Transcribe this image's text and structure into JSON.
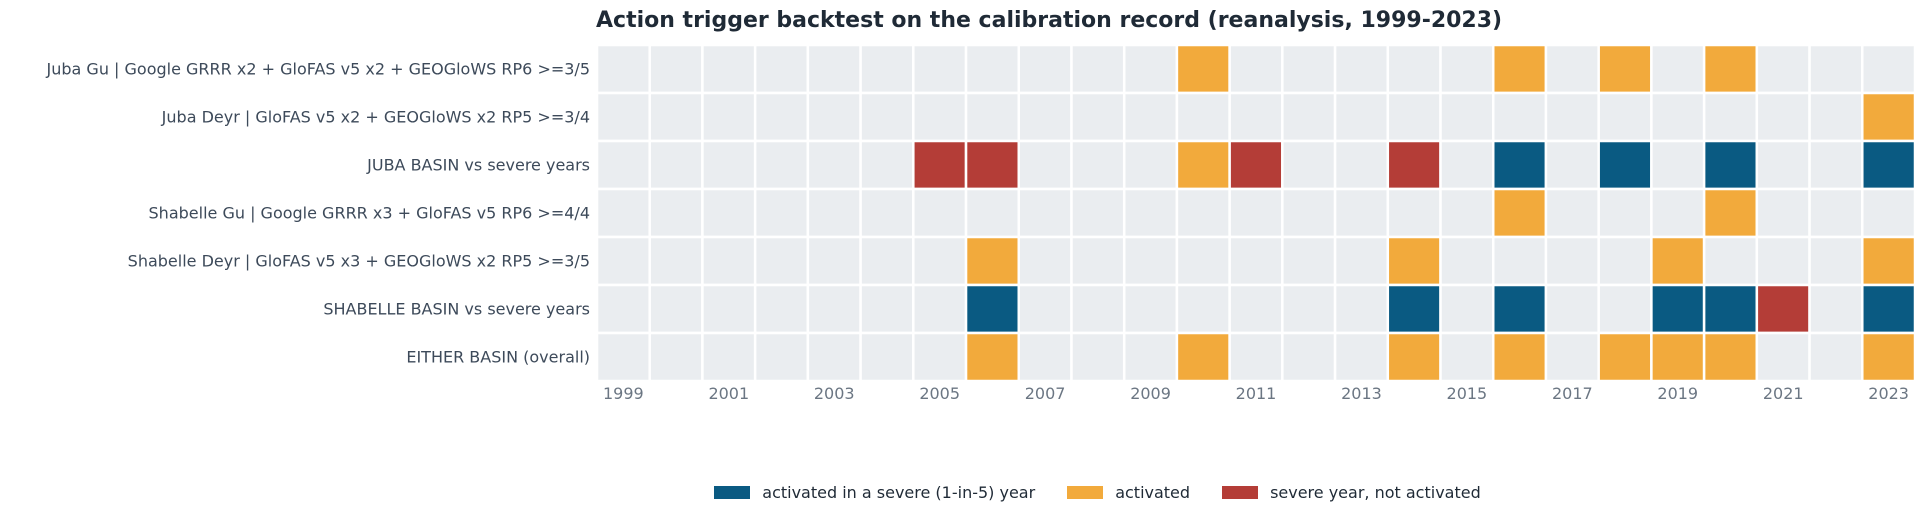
{
  "chart_data": {
    "type": "heatmap",
    "title": "Action trigger backtest on the calibration record (reanalysis, 1999-2023)",
    "years": [
      1999,
      2000,
      2001,
      2002,
      2003,
      2004,
      2005,
      2006,
      2007,
      2008,
      2009,
      2010,
      2011,
      2012,
      2013,
      2014,
      2015,
      2016,
      2017,
      2018,
      2019,
      2020,
      2021,
      2022,
      2023
    ],
    "x_tick_labels": [
      "1999",
      "2001",
      "2003",
      "2005",
      "2007",
      "2009",
      "2011",
      "2013",
      "2015",
      "2017",
      "2019",
      "2021",
      "2023"
    ],
    "rows": [
      {
        "label": "Juba Gu | Google GRRR x2 + GloFAS v5 x2 + GEOGloWS RP6 >=3/5",
        "cells": {
          "2010": "activated",
          "2016": "activated",
          "2018": "activated",
          "2020": "activated"
        }
      },
      {
        "label": "Juba Deyr | GloFAS v5 x2 + GEOGloWS x2 RP5 >=3/4",
        "cells": {
          "2023": "activated"
        }
      },
      {
        "label": "JUBA BASIN vs severe years",
        "cells": {
          "2005": "missed",
          "2006": "missed",
          "2010": "activated",
          "2011": "missed",
          "2014": "missed",
          "2016": "hit",
          "2018": "hit",
          "2020": "hit",
          "2023": "hit"
        }
      },
      {
        "label": "Shabelle Gu | Google GRRR x3 + GloFAS v5 RP6 >=4/4",
        "cells": {
          "2016": "activated",
          "2020": "activated"
        }
      },
      {
        "label": "Shabelle Deyr | GloFAS v5 x3 + GEOGloWS x2 RP5 >=3/5",
        "cells": {
          "2006": "activated",
          "2014": "activated",
          "2019": "activated",
          "2023": "activated"
        }
      },
      {
        "label": "SHABELLE BASIN vs severe years",
        "cells": {
          "2006": "hit",
          "2014": "hit",
          "2016": "hit",
          "2019": "hit",
          "2020": "hit",
          "2021": "missed",
          "2023": "hit"
        }
      },
      {
        "label": "EITHER BASIN (overall)",
        "cells": {
          "2006": "activated",
          "2010": "activated",
          "2014": "activated",
          "2016": "activated",
          "2018": "activated",
          "2019": "activated",
          "2020": "activated",
          "2023": "activated"
        }
      }
    ],
    "legend": [
      {
        "key": "hit",
        "label": "activated in a severe (1-in-5) year",
        "color": "#0a5a82"
      },
      {
        "key": "activated",
        "label": "activated",
        "color": "#f2aa3c"
      },
      {
        "key": "missed",
        "label": "severe year, not activated",
        "color": "#b43d37"
      }
    ],
    "empty_color": "#eaedf0",
    "grid_color": "#ffffff"
  }
}
